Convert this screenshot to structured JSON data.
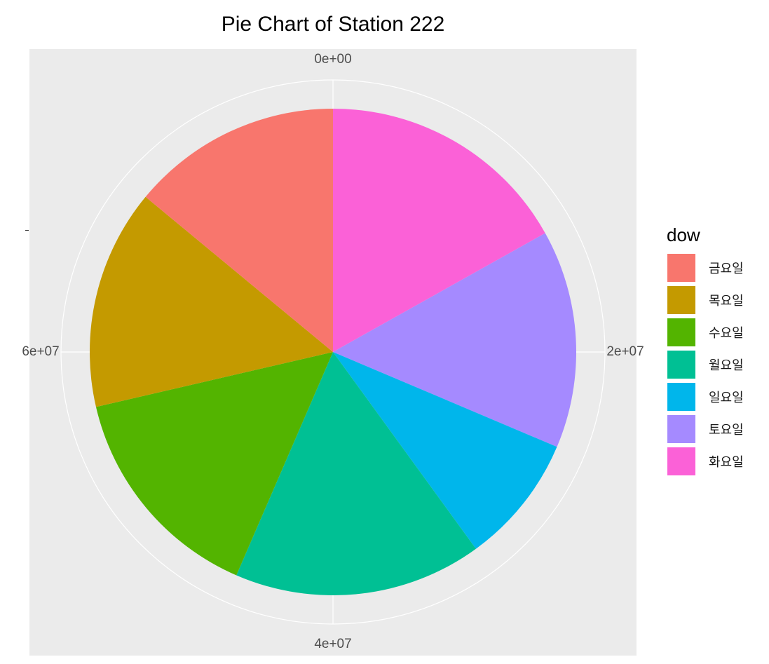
{
  "chart_data": {
    "type": "pie",
    "title": "Pie Chart of Station 222",
    "xlabel": "",
    "ylabel": "",
    "radial_ticks": [
      {
        "label": "0e+00",
        "value": 0
      },
      {
        "label": "2e+07",
        "value": 20000000
      },
      {
        "label": "4e+07",
        "value": 40000000
      },
      {
        "label": "6e+07",
        "value": 60000000
      }
    ],
    "total": 80000000,
    "legend": {
      "title": "dow",
      "position": "right"
    },
    "slices": [
      {
        "category": "화요일",
        "value": 13500000,
        "color": "#FB61D7"
      },
      {
        "category": "토요일",
        "value": 11600000,
        "color": "#A58AFF"
      },
      {
        "category": "일요일",
        "value": 6900000,
        "color": "#00B6EB"
      },
      {
        "category": "월요일",
        "value": 13200000,
        "color": "#00C094"
      },
      {
        "category": "수요일",
        "value": 11900000,
        "color": "#53B400"
      },
      {
        "category": "목요일",
        "value": 11700000,
        "color": "#C49A00"
      },
      {
        "category": "금요일",
        "value": 11200000,
        "color": "#F8766D"
      }
    ],
    "legend_order": [
      "금요일",
      "목요일",
      "수요일",
      "월요일",
      "일요일",
      "토요일",
      "화요일"
    ]
  }
}
